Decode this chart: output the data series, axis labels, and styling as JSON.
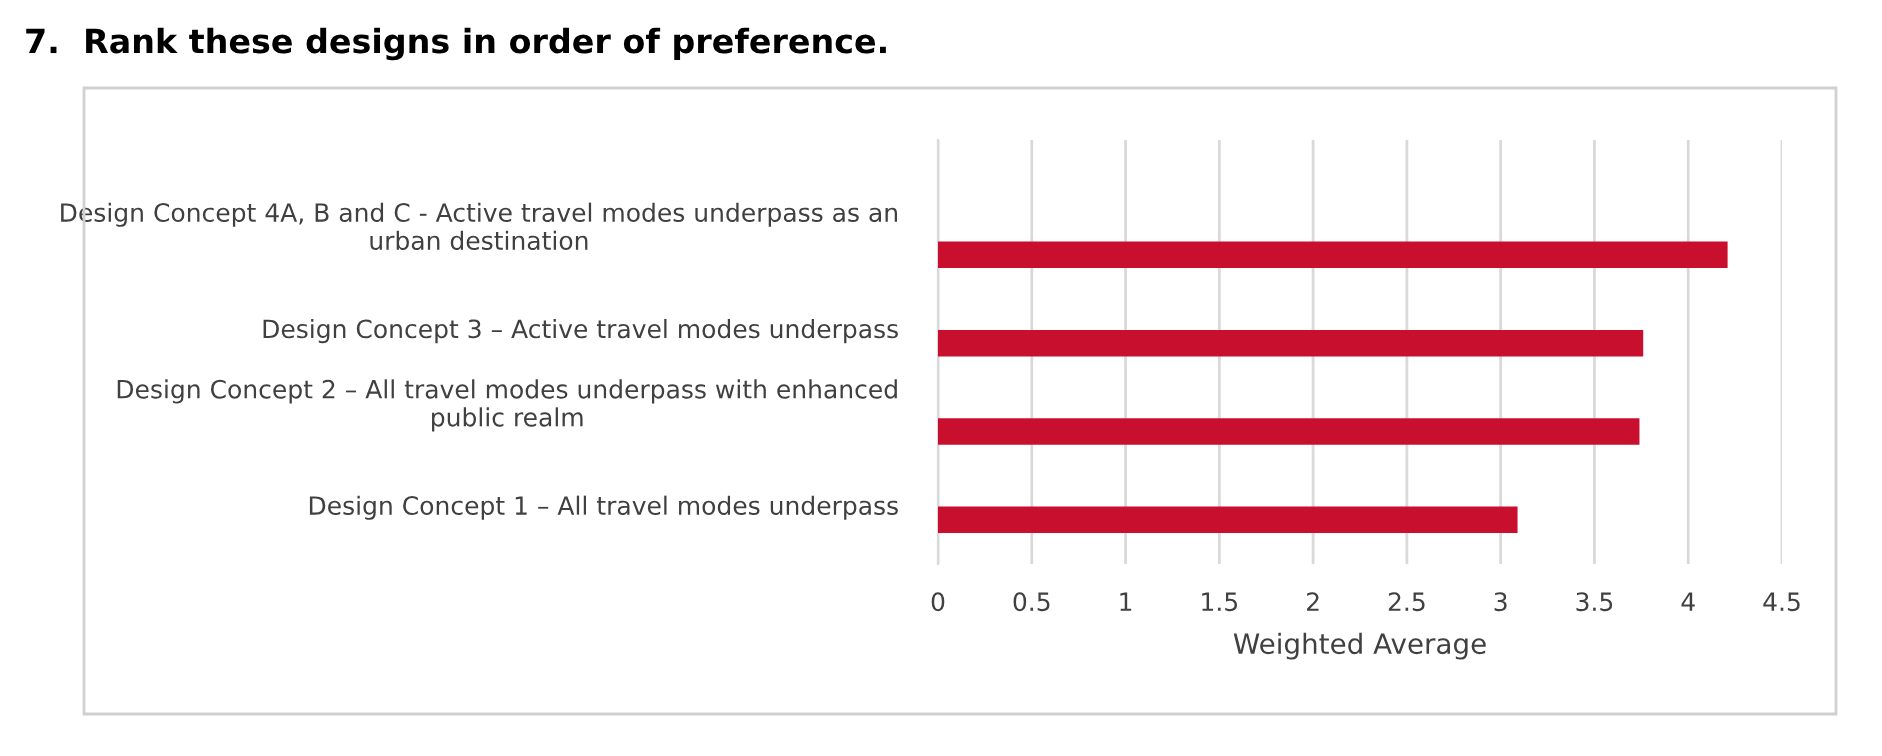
{
  "chart_data": {
    "type": "bar",
    "orientation": "horizontal",
    "title": "7.  Rank these designs in order of preference.",
    "categories": [
      "Design Concept 4A, B and C - Active travel modes underpass as an\nurban destination",
      "Design Concept 3 – Active travel modes underpass",
      "Design Concept 2 – All travel modes underpass with enhanced\npublic realm",
      "Design Concept 1 – All travel modes underpass"
    ],
    "values": [
      4.21,
      3.76,
      3.74,
      3.09
    ],
    "color": "#c8102e",
    "xlabel": "Weighted Average",
    "xlim": [
      0,
      4.5
    ],
    "xticks": [
      0,
      0.5,
      1,
      1.5,
      2,
      2.5,
      3,
      3.5,
      4,
      4.5
    ],
    "grid": "x"
  }
}
